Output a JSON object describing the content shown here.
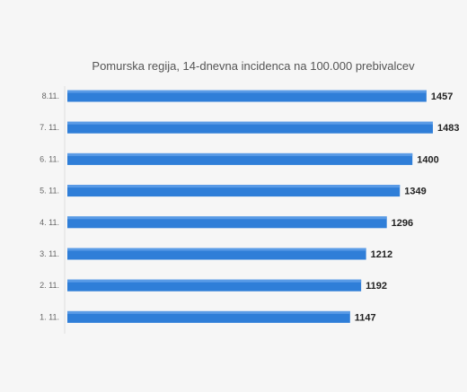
{
  "chart_data": {
    "type": "bar",
    "orientation": "horizontal",
    "title": "Pomurska regija, 14-dnevna incidenca na 100.000 prebivalcev",
    "categories": [
      "8.11.",
      "7. 11.",
      "6. 11.",
      "5. 11.",
      "4. 11.",
      "3. 11.",
      "2. 11.",
      "1. 11."
    ],
    "values": [
      1457,
      1483,
      1400,
      1349,
      1296,
      1212,
      1192,
      1147
    ],
    "data_labels": [
      "1457",
      "1483",
      "1400",
      "1349",
      "1296",
      "1212",
      "1192",
      "1147"
    ],
    "xlim": [
      0,
      1483
    ],
    "grid": false,
    "legend": "none",
    "bar_color": "#2f7ed8"
  }
}
